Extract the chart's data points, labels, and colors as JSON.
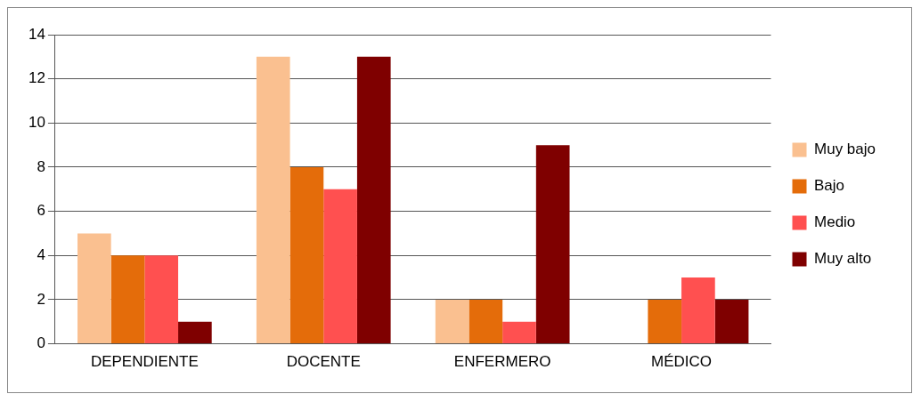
{
  "chart_data": {
    "type": "bar",
    "categories": [
      "DEPENDIENTE",
      "DOCENTE",
      "ENFERMERO",
      "MÉDICO"
    ],
    "series": [
      {
        "name": "Muy bajo",
        "color": "#fac090",
        "values": [
          5,
          13,
          2,
          0
        ]
      },
      {
        "name": "Bajo",
        "color": "#e46c0a",
        "values": [
          4,
          8,
          2,
          2
        ]
      },
      {
        "name": "Medio",
        "color": "#ff5050",
        "values": [
          4,
          7,
          1,
          3
        ]
      },
      {
        "name": "Muy alto",
        "color": "#7f0000",
        "values": [
          1,
          13,
          9,
          2
        ]
      }
    ],
    "ylim": [
      0,
      14
    ],
    "yticks": [
      0,
      2,
      4,
      6,
      8,
      10,
      12,
      14
    ],
    "grid": "y",
    "legend": "right"
  }
}
